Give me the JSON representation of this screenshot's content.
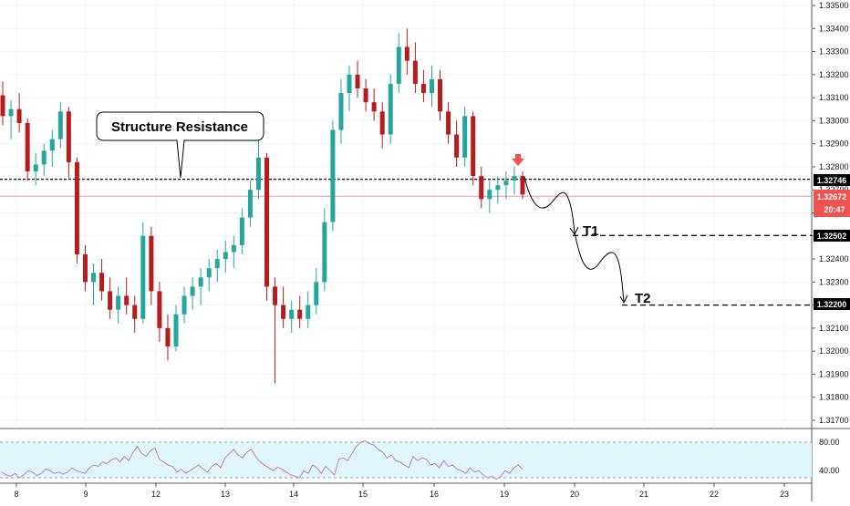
{
  "chart_data": {
    "type": "candlestick",
    "x_axis": {
      "tick_labels": [
        "8",
        "9",
        "12",
        "13",
        "14",
        "15",
        "16",
        "19",
        "20",
        "21",
        "22",
        "23"
      ]
    },
    "y_axis": {
      "range": [
        1.3166,
        1.3356
      ],
      "tick_labels": [
        "1.33500",
        "1.33400",
        "1.33300",
        "1.33200",
        "1.33100",
        "1.33000",
        "1.32900",
        "1.32800",
        "1.32700",
        "1.32600",
        "1.32500",
        "1.32400",
        "1.32300",
        "1.32200",
        "1.32100",
        "1.32000",
        "1.31900",
        "1.31800",
        "1.31700"
      ],
      "tick_values": [
        1.335,
        1.334,
        1.333,
        1.332,
        1.331,
        1.33,
        1.329,
        1.328,
        1.327,
        1.326,
        1.325,
        1.324,
        1.323,
        1.322,
        1.321,
        1.32,
        1.319,
        1.318,
        1.317
      ]
    },
    "series": [
      {
        "ohlc": [
          [
            1.3311,
            1.3317,
            1.3298,
            1.3302
          ],
          [
            1.3302,
            1.3309,
            1.3292,
            1.3305
          ],
          [
            1.3305,
            1.3312,
            1.3295,
            1.3299
          ],
          [
            1.3299,
            1.3301,
            1.3274,
            1.3278
          ],
          [
            1.3278,
            1.3286,
            1.3272,
            1.3281
          ],
          [
            1.3281,
            1.329,
            1.3276,
            1.3287
          ],
          [
            1.3287,
            1.3296,
            1.328,
            1.3292
          ],
          [
            1.3292,
            1.3308,
            1.3288,
            1.3304
          ],
          [
            1.3304,
            1.3306,
            1.3275,
            1.3282
          ],
          [
            1.3282,
            1.3284,
            1.3238,
            1.3242
          ],
          [
            1.3242,
            1.3246,
            1.3226,
            1.323
          ],
          [
            1.323,
            1.3238,
            1.322,
            1.3234
          ],
          [
            1.3234,
            1.324,
            1.3222,
            1.3226
          ],
          [
            1.3226,
            1.3232,
            1.3214,
            1.3218
          ],
          [
            1.3218,
            1.3228,
            1.3212,
            1.3224
          ],
          [
            1.3224,
            1.3232,
            1.3216,
            1.322
          ],
          [
            1.322,
            1.3224,
            1.3208,
            1.3214
          ],
          [
            1.3214,
            1.3256,
            1.3212,
            1.325
          ],
          [
            1.325,
            1.3254,
            1.322,
            1.3226
          ],
          [
            1.3226,
            1.323,
            1.3204,
            1.321
          ],
          [
            1.321,
            1.3216,
            1.3196,
            1.3202
          ],
          [
            1.3202,
            1.322,
            1.32,
            1.3216
          ],
          [
            1.3216,
            1.3228,
            1.3212,
            1.3224
          ],
          [
            1.3224,
            1.3232,
            1.3218,
            1.3228
          ],
          [
            1.3228,
            1.3236,
            1.322,
            1.3232
          ],
          [
            1.3232,
            1.324,
            1.3226,
            1.3236
          ],
          [
            1.3236,
            1.3244,
            1.323,
            1.324
          ],
          [
            1.324,
            1.3248,
            1.3234,
            1.3243
          ],
          [
            1.3243,
            1.325,
            1.3236,
            1.3246
          ],
          [
            1.3246,
            1.3262,
            1.3242,
            1.3258
          ],
          [
            1.3258,
            1.3274,
            1.3254,
            1.327
          ],
          [
            1.327,
            1.3294,
            1.3266,
            1.3284
          ],
          [
            1.3284,
            1.3286,
            1.3222,
            1.3228
          ],
          [
            1.3228,
            1.3232,
            1.3186,
            1.322
          ],
          [
            1.322,
            1.3228,
            1.321,
            1.3214
          ],
          [
            1.3214,
            1.3222,
            1.3208,
            1.3218
          ],
          [
            1.3218,
            1.3224,
            1.321,
            1.3214
          ],
          [
            1.3214,
            1.3226,
            1.321,
            1.322
          ],
          [
            1.322,
            1.3236,
            1.3216,
            1.323
          ],
          [
            1.323,
            1.3262,
            1.3226,
            1.3256
          ],
          [
            1.3256,
            1.33,
            1.3252,
            1.3296
          ],
          [
            1.3296,
            1.3318,
            1.329,
            1.3312
          ],
          [
            1.3312,
            1.3324,
            1.3304,
            1.332
          ],
          [
            1.332,
            1.3326,
            1.331,
            1.3314
          ],
          [
            1.3314,
            1.3318,
            1.3304,
            1.3308
          ],
          [
            1.3308,
            1.3314,
            1.33,
            1.3304
          ],
          [
            1.3304,
            1.3308,
            1.3288,
            1.3294
          ],
          [
            1.3294,
            1.332,
            1.329,
            1.3316
          ],
          [
            1.3316,
            1.3338,
            1.3312,
            1.3332
          ],
          [
            1.3332,
            1.334,
            1.332,
            1.3326
          ],
          [
            1.3326,
            1.3334,
            1.3312,
            1.3316
          ],
          [
            1.3316,
            1.3322,
            1.3308,
            1.3312
          ],
          [
            1.3312,
            1.3324,
            1.3306,
            1.3318
          ],
          [
            1.3318,
            1.3322,
            1.33,
            1.3304
          ],
          [
            1.3304,
            1.3308,
            1.329,
            1.3294
          ],
          [
            1.3294,
            1.33,
            1.328,
            1.3284
          ],
          [
            1.3284,
            1.3306,
            1.328,
            1.3302
          ],
          [
            1.3302,
            1.3304,
            1.3272,
            1.3276
          ],
          [
            1.3276,
            1.328,
            1.3262,
            1.3266
          ],
          [
            1.3266,
            1.3274,
            1.326,
            1.327
          ],
          [
            1.327,
            1.3276,
            1.3264,
            1.3272
          ],
          [
            1.3272,
            1.3278,
            1.3266,
            1.3274
          ],
          [
            1.3274,
            1.328,
            1.3268,
            1.3276
          ],
          [
            1.3276,
            1.3278,
            1.3266,
            1.3268
          ]
        ]
      }
    ],
    "current_price": "1.32672",
    "countdown": "20:47",
    "annotations": {
      "callout": "Structure Resistance",
      "resistance_level": "1.32746",
      "targets": [
        {
          "label": "T1",
          "price": "1.32502"
        },
        {
          "label": "T2",
          "price": "1.32200"
        }
      ]
    },
    "rsi": {
      "tick_labels": [
        "80.00",
        "40.00"
      ],
      "tick_values": [
        80,
        40
      ],
      "upper": 70,
      "lower": 30,
      "values": [
        38,
        34,
        32,
        36,
        30,
        34,
        40,
        38,
        33,
        36,
        42,
        40,
        36,
        38,
        35,
        38,
        44,
        40,
        38,
        36,
        44,
        48,
        46,
        52,
        50,
        55,
        58,
        52,
        60,
        54,
        66,
        74,
        64,
        60,
        68,
        72,
        56,
        52,
        48,
        46,
        38,
        42,
        36,
        40,
        44,
        48,
        42,
        38,
        46,
        50,
        44,
        58,
        64,
        70,
        62,
        58,
        66,
        70,
        60,
        52,
        48,
        44,
        40,
        45,
        42,
        38,
        34,
        32,
        30,
        40,
        36,
        48,
        44,
        36,
        46,
        40,
        34,
        56,
        58,
        54,
        64,
        74,
        80,
        82,
        78,
        76,
        70,
        66,
        58,
        62,
        54,
        52,
        48,
        44,
        60,
        54,
        58,
        56,
        48,
        50,
        44,
        54,
        46,
        48,
        42,
        40,
        36,
        44,
        38,
        40,
        34,
        30,
        32,
        28,
        32,
        40,
        36,
        44,
        48,
        42
      ]
    },
    "colors": {
      "up": "#26a69a",
      "down": "#b71c1c",
      "marker": "#ef5350",
      "rsi_line": "#c27ec9",
      "rsi_band": "#dff7fc"
    }
  }
}
